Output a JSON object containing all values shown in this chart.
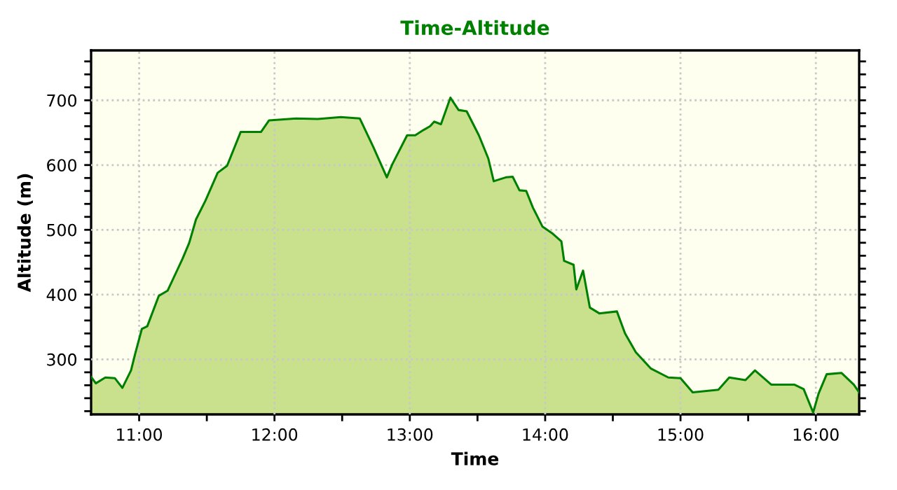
{
  "chart_data": {
    "type": "area",
    "title": "Time-Altitude",
    "xlabel": "Time",
    "ylabel": "Altitude (m)",
    "xlim": [
      10.645,
      16.32
    ],
    "ylim": [
      215,
      777
    ],
    "xticks": [
      {
        "value": 11,
        "label": "11:00"
      },
      {
        "value": 11.5,
        "label": null
      },
      {
        "value": 12,
        "label": "12:00"
      },
      {
        "value": 12.5,
        "label": null
      },
      {
        "value": 13,
        "label": "13:00"
      },
      {
        "value": 13.5,
        "label": null
      },
      {
        "value": 14,
        "label": "14:00"
      },
      {
        "value": 14.5,
        "label": null
      },
      {
        "value": 15,
        "label": "15:00"
      },
      {
        "value": 15.5,
        "label": null
      },
      {
        "value": 16,
        "label": "16:00"
      }
    ],
    "yticks": [
      {
        "value": 220,
        "label": null
      },
      {
        "value": 240,
        "label": null
      },
      {
        "value": 260,
        "label": null
      },
      {
        "value": 280,
        "label": null
      },
      300,
      {
        "value": 320,
        "label": null
      },
      {
        "value": 340,
        "label": null
      },
      {
        "value": 360,
        "label": null
      },
      {
        "value": 380,
        "label": null
      },
      400,
      {
        "value": 420,
        "label": null
      },
      {
        "value": 440,
        "label": null
      },
      {
        "value": 460,
        "label": null
      },
      {
        "value": 480,
        "label": null
      },
      500,
      {
        "value": 520,
        "label": null
      },
      {
        "value": 540,
        "label": null
      },
      {
        "value": 560,
        "label": null
      },
      {
        "value": 580,
        "label": null
      },
      600,
      {
        "value": 620,
        "label": null
      },
      {
        "value": 640,
        "label": null
      },
      {
        "value": 660,
        "label": null
      },
      {
        "value": 680,
        "label": null
      },
      700,
      {
        "value": 720,
        "label": null
      },
      {
        "value": 740,
        "label": null
      },
      {
        "value": 760,
        "label": null
      }
    ],
    "grid": true,
    "line_style": "solid",
    "x": [
      10.645,
      10.68,
      10.75,
      10.82,
      10.876,
      10.94,
      10.97,
      11.02,
      11.06,
      11.145,
      11.21,
      11.32,
      11.37,
      11.42,
      11.49,
      11.58,
      11.65,
      11.75,
      11.9,
      11.96,
      12.16,
      12.32,
      12.49,
      12.63,
      12.73,
      12.83,
      12.87,
      12.98,
      13.04,
      13.1,
      13.15,
      13.18,
      13.23,
      13.3,
      13.36,
      13.42,
      13.51,
      13.58,
      13.62,
      13.71,
      13.76,
      13.81,
      13.86,
      13.91,
      13.98,
      14.05,
      14.12,
      14.14,
      14.21,
      14.23,
      14.28,
      14.33,
      14.4,
      14.53,
      14.59,
      14.67,
      14.78,
      14.91,
      15.0,
      15.09,
      15.28,
      15.36,
      15.48,
      15.55,
      15.67,
      15.84,
      15.91,
      15.98,
      16.02,
      16.08,
      16.19,
      16.28,
      16.32
    ],
    "series": [
      {
        "color": "#008000",
        "values": [
          273,
          263,
          272,
          271,
          256,
          283,
          308,
          347,
          351,
          398,
          406,
          455,
          480,
          516,
          545,
          588,
          599,
          651,
          651,
          669,
          672,
          671,
          674,
          672,
          628,
          581,
          601,
          646,
          646,
          654,
          660,
          667,
          663,
          704,
          685,
          683,
          646,
          610,
          575,
          581,
          582,
          561,
          560,
          534,
          505,
          495,
          482,
          452,
          446,
          408,
          437,
          380,
          371,
          374,
          340,
          311,
          286,
          272,
          271,
          249,
          253,
          272,
          268,
          283,
          261,
          261,
          254,
          218,
          247,
          277,
          279,
          261,
          249
        ]
      }
    ]
  }
}
